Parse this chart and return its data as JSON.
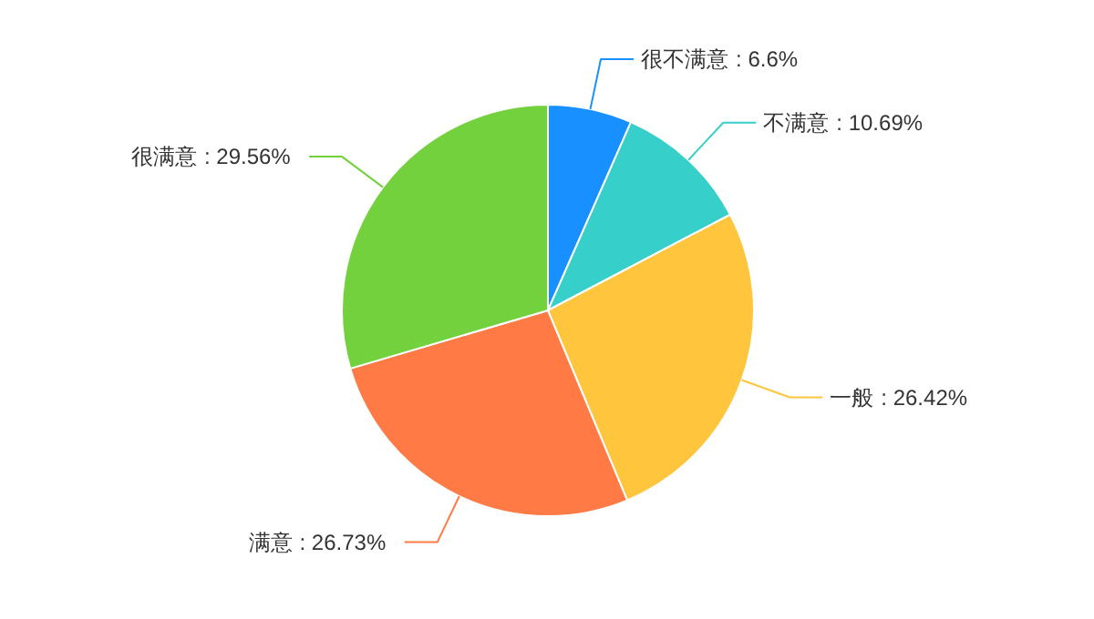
{
  "chart_data": {
    "type": "pie",
    "categories": [
      "很不满意",
      "不满意",
      "一般",
      "满意",
      "很满意"
    ],
    "values": [
      6.6,
      10.69,
      26.42,
      26.73,
      29.56
    ],
    "value_labels": [
      ": 6.6%",
      ": 10.69%",
      ": 26.42%",
      ": 26.73%",
      ": 29.56%"
    ],
    "colors": [
      "#1890ff",
      "#36cfc9",
      "#ffc53d",
      "#ff7a45",
      "#73d13d"
    ]
  }
}
